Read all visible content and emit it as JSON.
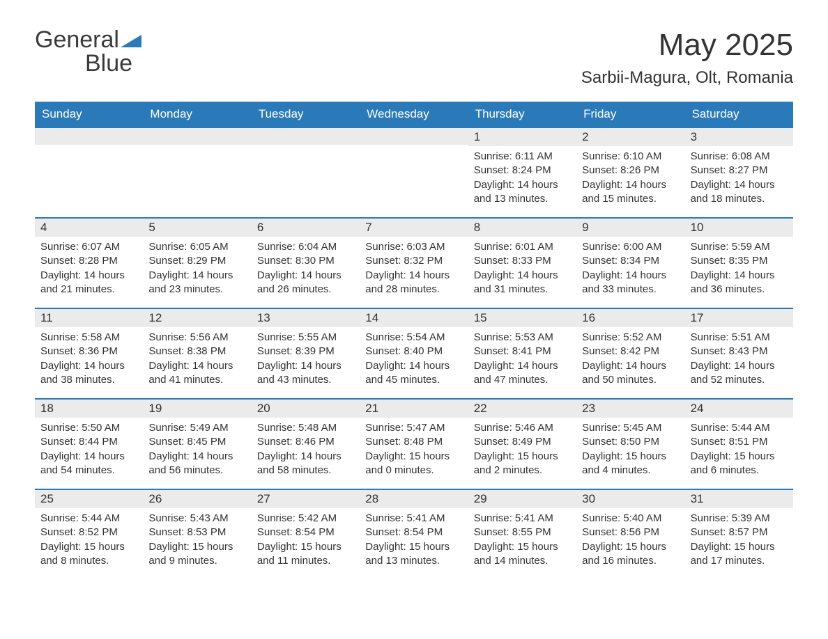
{
  "logo": {
    "part1": "General",
    "part2": "Blue",
    "accent_color": "#2a7ab9",
    "text_color": "#3a3a3a"
  },
  "title": "May 2025",
  "location": "Sarbii-Magura, Olt, Romania",
  "colors": {
    "header_bg": "#2a7ab9",
    "header_text": "#ffffff",
    "daynum_bg": "#ebebeb",
    "body_bg": "#ffffff",
    "text": "#333333",
    "row_border": "#2a7ab9"
  },
  "day_names": [
    "Sunday",
    "Monday",
    "Tuesday",
    "Wednesday",
    "Thursday",
    "Friday",
    "Saturday"
  ],
  "weeks": [
    [
      {
        "empty": true
      },
      {
        "empty": true
      },
      {
        "empty": true
      },
      {
        "empty": true
      },
      {
        "num": "1",
        "sunrise": "Sunrise: 6:11 AM",
        "sunset": "Sunset: 8:24 PM",
        "daylight": "Daylight: 14 hours and 13 minutes."
      },
      {
        "num": "2",
        "sunrise": "Sunrise: 6:10 AM",
        "sunset": "Sunset: 8:26 PM",
        "daylight": "Daylight: 14 hours and 15 minutes."
      },
      {
        "num": "3",
        "sunrise": "Sunrise: 6:08 AM",
        "sunset": "Sunset: 8:27 PM",
        "daylight": "Daylight: 14 hours and 18 minutes."
      }
    ],
    [
      {
        "num": "4",
        "sunrise": "Sunrise: 6:07 AM",
        "sunset": "Sunset: 8:28 PM",
        "daylight": "Daylight: 14 hours and 21 minutes."
      },
      {
        "num": "5",
        "sunrise": "Sunrise: 6:05 AM",
        "sunset": "Sunset: 8:29 PM",
        "daylight": "Daylight: 14 hours and 23 minutes."
      },
      {
        "num": "6",
        "sunrise": "Sunrise: 6:04 AM",
        "sunset": "Sunset: 8:30 PM",
        "daylight": "Daylight: 14 hours and 26 minutes."
      },
      {
        "num": "7",
        "sunrise": "Sunrise: 6:03 AM",
        "sunset": "Sunset: 8:32 PM",
        "daylight": "Daylight: 14 hours and 28 minutes."
      },
      {
        "num": "8",
        "sunrise": "Sunrise: 6:01 AM",
        "sunset": "Sunset: 8:33 PM",
        "daylight": "Daylight: 14 hours and 31 minutes."
      },
      {
        "num": "9",
        "sunrise": "Sunrise: 6:00 AM",
        "sunset": "Sunset: 8:34 PM",
        "daylight": "Daylight: 14 hours and 33 minutes."
      },
      {
        "num": "10",
        "sunrise": "Sunrise: 5:59 AM",
        "sunset": "Sunset: 8:35 PM",
        "daylight": "Daylight: 14 hours and 36 minutes."
      }
    ],
    [
      {
        "num": "11",
        "sunrise": "Sunrise: 5:58 AM",
        "sunset": "Sunset: 8:36 PM",
        "daylight": "Daylight: 14 hours and 38 minutes."
      },
      {
        "num": "12",
        "sunrise": "Sunrise: 5:56 AM",
        "sunset": "Sunset: 8:38 PM",
        "daylight": "Daylight: 14 hours and 41 minutes."
      },
      {
        "num": "13",
        "sunrise": "Sunrise: 5:55 AM",
        "sunset": "Sunset: 8:39 PM",
        "daylight": "Daylight: 14 hours and 43 minutes."
      },
      {
        "num": "14",
        "sunrise": "Sunrise: 5:54 AM",
        "sunset": "Sunset: 8:40 PM",
        "daylight": "Daylight: 14 hours and 45 minutes."
      },
      {
        "num": "15",
        "sunrise": "Sunrise: 5:53 AM",
        "sunset": "Sunset: 8:41 PM",
        "daylight": "Daylight: 14 hours and 47 minutes."
      },
      {
        "num": "16",
        "sunrise": "Sunrise: 5:52 AM",
        "sunset": "Sunset: 8:42 PM",
        "daylight": "Daylight: 14 hours and 50 minutes."
      },
      {
        "num": "17",
        "sunrise": "Sunrise: 5:51 AM",
        "sunset": "Sunset: 8:43 PM",
        "daylight": "Daylight: 14 hours and 52 minutes."
      }
    ],
    [
      {
        "num": "18",
        "sunrise": "Sunrise: 5:50 AM",
        "sunset": "Sunset: 8:44 PM",
        "daylight": "Daylight: 14 hours and 54 minutes."
      },
      {
        "num": "19",
        "sunrise": "Sunrise: 5:49 AM",
        "sunset": "Sunset: 8:45 PM",
        "daylight": "Daylight: 14 hours and 56 minutes."
      },
      {
        "num": "20",
        "sunrise": "Sunrise: 5:48 AM",
        "sunset": "Sunset: 8:46 PM",
        "daylight": "Daylight: 14 hours and 58 minutes."
      },
      {
        "num": "21",
        "sunrise": "Sunrise: 5:47 AM",
        "sunset": "Sunset: 8:48 PM",
        "daylight": "Daylight: 15 hours and 0 minutes."
      },
      {
        "num": "22",
        "sunrise": "Sunrise: 5:46 AM",
        "sunset": "Sunset: 8:49 PM",
        "daylight": "Daylight: 15 hours and 2 minutes."
      },
      {
        "num": "23",
        "sunrise": "Sunrise: 5:45 AM",
        "sunset": "Sunset: 8:50 PM",
        "daylight": "Daylight: 15 hours and 4 minutes."
      },
      {
        "num": "24",
        "sunrise": "Sunrise: 5:44 AM",
        "sunset": "Sunset: 8:51 PM",
        "daylight": "Daylight: 15 hours and 6 minutes."
      }
    ],
    [
      {
        "num": "25",
        "sunrise": "Sunrise: 5:44 AM",
        "sunset": "Sunset: 8:52 PM",
        "daylight": "Daylight: 15 hours and 8 minutes."
      },
      {
        "num": "26",
        "sunrise": "Sunrise: 5:43 AM",
        "sunset": "Sunset: 8:53 PM",
        "daylight": "Daylight: 15 hours and 9 minutes."
      },
      {
        "num": "27",
        "sunrise": "Sunrise: 5:42 AM",
        "sunset": "Sunset: 8:54 PM",
        "daylight": "Daylight: 15 hours and 11 minutes."
      },
      {
        "num": "28",
        "sunrise": "Sunrise: 5:41 AM",
        "sunset": "Sunset: 8:54 PM",
        "daylight": "Daylight: 15 hours and 13 minutes."
      },
      {
        "num": "29",
        "sunrise": "Sunrise: 5:41 AM",
        "sunset": "Sunset: 8:55 PM",
        "daylight": "Daylight: 15 hours and 14 minutes."
      },
      {
        "num": "30",
        "sunrise": "Sunrise: 5:40 AM",
        "sunset": "Sunset: 8:56 PM",
        "daylight": "Daylight: 15 hours and 16 minutes."
      },
      {
        "num": "31",
        "sunrise": "Sunrise: 5:39 AM",
        "sunset": "Sunset: 8:57 PM",
        "daylight": "Daylight: 15 hours and 17 minutes."
      }
    ]
  ]
}
